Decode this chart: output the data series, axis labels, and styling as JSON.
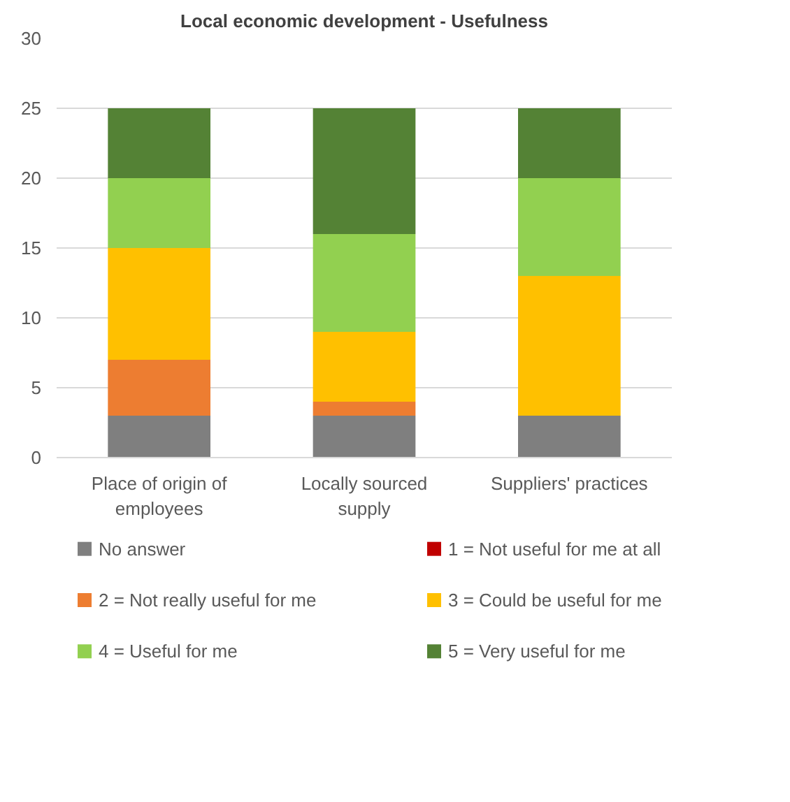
{
  "chart_data": {
    "type": "bar",
    "title": "Local economic development - Usefulness",
    "stacked": true,
    "categories": [
      "Place of origin of employees",
      "Locally sourced supply",
      "Suppliers' practices"
    ],
    "series": [
      {
        "name": "No answer",
        "color": "#7f7f7f",
        "values": [
          3,
          3,
          3
        ]
      },
      {
        "name": "1 = Not useful for me at all",
        "color": "#c00000",
        "values": [
          0,
          0,
          0
        ]
      },
      {
        "name": "2 = Not really useful for me",
        "color": "#ed7d31",
        "values": [
          4,
          1,
          0
        ]
      },
      {
        "name": "3 = Could be useful for me",
        "color": "#ffc000",
        "values": [
          8,
          5,
          10
        ]
      },
      {
        "name": "4 = Useful for me",
        "color": "#92d050",
        "values": [
          5,
          7,
          7
        ]
      },
      {
        "name": "5 = Very useful for me",
        "color": "#548235",
        "values": [
          5,
          9,
          5
        ]
      }
    ],
    "ylim": [
      0,
      30
    ],
    "yticks": [
      0,
      5,
      10,
      15,
      20,
      25,
      30
    ],
    "grid": "y",
    "legend": "bottom"
  }
}
